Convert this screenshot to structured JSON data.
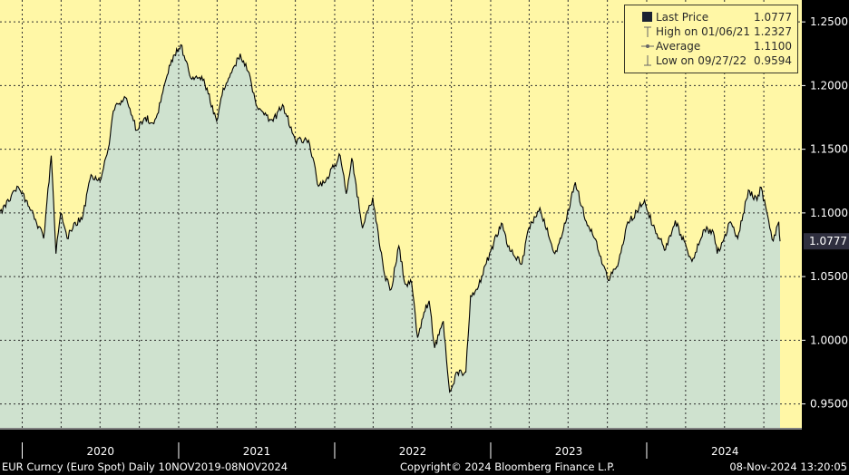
{
  "chart_data": {
    "type": "area",
    "title": "",
    "xlabel": "",
    "ylabel": "",
    "x_start": "2019-11-10",
    "x_end": "2024-11-08",
    "year_labels": [
      "2020",
      "2021",
      "2022",
      "2023",
      "2024"
    ],
    "y_ticks": [
      "0.9500",
      "1.0000",
      "1.0500",
      "1.1000",
      "1.1500",
      "1.2000",
      "1.2500"
    ],
    "ylim": [
      0.9312,
      1.2672
    ],
    "grid": true,
    "series": [
      {
        "name": "Last Price",
        "points": [
          [
            "2019-11-10",
            1.101
          ],
          [
            "2019-12-01",
            1.109
          ],
          [
            "2019-12-20",
            1.121
          ],
          [
            "2020-01-10",
            1.11
          ],
          [
            "2020-02-01",
            1.095
          ],
          [
            "2020-02-20",
            1.08
          ],
          [
            "2020-03-09",
            1.145
          ],
          [
            "2020-03-20",
            1.068
          ],
          [
            "2020-03-31",
            1.1
          ],
          [
            "2020-04-15",
            1.08
          ],
          [
            "2020-05-01",
            1.092
          ],
          [
            "2020-05-20",
            1.095
          ],
          [
            "2020-06-10",
            1.13
          ],
          [
            "2020-07-01",
            1.125
          ],
          [
            "2020-07-20",
            1.15
          ],
          [
            "2020-08-01",
            1.18
          ],
          [
            "2020-08-15",
            1.186
          ],
          [
            "2020-09-01",
            1.19
          ],
          [
            "2020-09-25",
            1.165
          ],
          [
            "2020-10-15",
            1.175
          ],
          [
            "2020-11-04",
            1.17
          ],
          [
            "2020-11-20",
            1.187
          ],
          [
            "2020-12-15",
            1.22
          ],
          [
            "2021-01-06",
            1.232
          ],
          [
            "2021-02-01",
            1.205
          ],
          [
            "2021-03-01",
            1.205
          ],
          [
            "2021-03-31",
            1.172
          ],
          [
            "2021-04-15",
            1.198
          ],
          [
            "2021-05-25",
            1.225
          ],
          [
            "2021-06-15",
            1.21
          ],
          [
            "2021-07-01",
            1.185
          ],
          [
            "2021-07-20",
            1.177
          ],
          [
            "2021-08-10",
            1.172
          ],
          [
            "2021-09-01",
            1.185
          ],
          [
            "2021-10-01",
            1.157
          ],
          [
            "2021-11-01",
            1.157
          ],
          [
            "2021-11-24",
            1.121
          ],
          [
            "2021-12-15",
            1.128
          ],
          [
            "2022-01-14",
            1.145
          ],
          [
            "2022-01-28",
            1.115
          ],
          [
            "2022-02-10",
            1.143
          ],
          [
            "2022-03-07",
            1.088
          ],
          [
            "2022-03-31",
            1.112
          ],
          [
            "2022-04-28",
            1.051
          ],
          [
            "2022-05-13",
            1.04
          ],
          [
            "2022-05-31",
            1.074
          ],
          [
            "2022-06-15",
            1.044
          ],
          [
            "2022-06-30",
            1.045
          ],
          [
            "2022-07-14",
            1.002
          ],
          [
            "2022-07-29",
            1.022
          ],
          [
            "2022-08-10",
            1.031
          ],
          [
            "2022-08-23",
            0.994
          ],
          [
            "2022-09-12",
            1.015
          ],
          [
            "2022-09-27",
            0.9594
          ],
          [
            "2022-10-15",
            0.975
          ],
          [
            "2022-11-04",
            0.975
          ],
          [
            "2022-11-15",
            1.035
          ],
          [
            "2022-12-01",
            1.04
          ],
          [
            "2023-01-01",
            1.07
          ],
          [
            "2023-01-26",
            1.092
          ],
          [
            "2023-02-15",
            1.07
          ],
          [
            "2023-03-15",
            1.06
          ],
          [
            "2023-03-31",
            1.088
          ],
          [
            "2023-04-26",
            1.104
          ],
          [
            "2023-05-31",
            1.068
          ],
          [
            "2023-06-15",
            1.08
          ],
          [
            "2023-07-18",
            1.124
          ],
          [
            "2023-08-15",
            1.09
          ],
          [
            "2023-09-01",
            1.08
          ],
          [
            "2023-10-03",
            1.047
          ],
          [
            "2023-10-25",
            1.058
          ],
          [
            "2023-11-15",
            1.09
          ],
          [
            "2023-12-27",
            1.11
          ],
          [
            "2024-01-15",
            1.09
          ],
          [
            "2024-02-14",
            1.071
          ],
          [
            "2024-03-08",
            1.094
          ],
          [
            "2024-04-16",
            1.062
          ],
          [
            "2024-05-15",
            1.087
          ],
          [
            "2024-06-05",
            1.085
          ],
          [
            "2024-06-14",
            1.068
          ],
          [
            "2024-07-15",
            1.093
          ],
          [
            "2024-08-01",
            1.08
          ],
          [
            "2024-08-26",
            1.118
          ],
          [
            "2024-09-15",
            1.11
          ],
          [
            "2024-09-25",
            1.12
          ],
          [
            "2024-10-15",
            1.088
          ],
          [
            "2024-10-23",
            1.078
          ],
          [
            "2024-11-05",
            1.093
          ],
          [
            "2024-11-08",
            1.0777
          ]
        ]
      }
    ]
  },
  "legend": {
    "last_price_label": "Last Price",
    "last_price_value": "1.0777",
    "high_label": "High on 01/06/21",
    "high_value": "1.2327",
    "average_label": "Average",
    "average_value": "1.1100",
    "low_label": "Low on 09/27/22",
    "low_value": "0.9594"
  },
  "last_price_badge": "1.0777",
  "footer": {
    "left": "EUR Curncy (Euro Spot)  Daily 10NOV2019-08NOV2024",
    "center": "Copyright© 2024 Bloomberg Finance L.P.",
    "right": "08-Nov-2024 13:20:05"
  },
  "colors": {
    "background": "#000000",
    "plot_background": "#fff7a6",
    "area_fill": "#cfe2cf",
    "line": "#000000",
    "grid": "#2f2f2f",
    "badge": "#2f2f3f"
  }
}
